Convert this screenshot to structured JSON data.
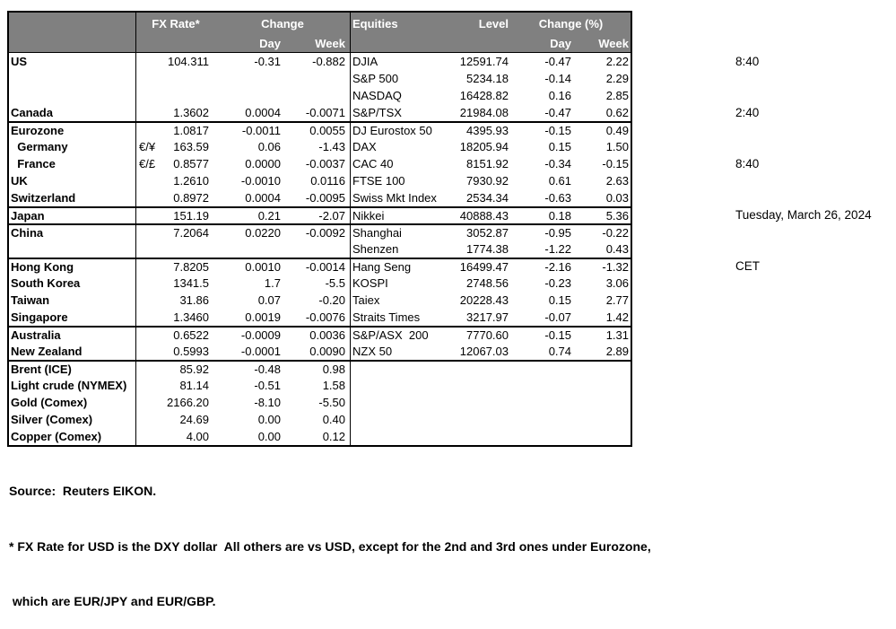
{
  "colors": {
    "header_bg": "#808080",
    "header_text": "#ffffff",
    "border": "#000000",
    "body_text": "#000000",
    "background": "#ffffff"
  },
  "side_panel": {
    "lines": [
      "8:40",
      "2:40",
      "8:40",
      "Tuesday, March 26, 2024",
      "CET"
    ]
  },
  "table": {
    "header": {
      "fx_rate": "FX Rate*",
      "change": "Change",
      "day": "Day",
      "week": "Week",
      "equities": "Equities",
      "level": "Level",
      "change_pct": "Change (%)",
      "eq_day": "Day",
      "eq_week": "Week"
    },
    "group_starts": [
      4,
      9,
      10,
      12,
      16,
      18
    ],
    "rows": [
      {
        "country": "US",
        "pair": "",
        "rate": "104.311",
        "day": "-0.31",
        "week": "-0.882",
        "eq": "DJIA",
        "level": "12591.74",
        "eday": "-0.47",
        "eweek": "2.22"
      },
      {
        "country": "",
        "pair": "",
        "rate": "",
        "day": "",
        "week": "",
        "eq": "S&P 500",
        "level": "5234.18",
        "eday": "-0.14",
        "eweek": "2.29"
      },
      {
        "country": "",
        "pair": "",
        "rate": "",
        "day": "",
        "week": "",
        "eq": "NASDAQ",
        "level": "16428.82",
        "eday": "0.16",
        "eweek": "2.85"
      },
      {
        "country": "Canada",
        "pair": "",
        "rate": "1.3602",
        "day": "0.0004",
        "week": "-0.0071",
        "eq": "S&P/TSX",
        "level": "21984.08",
        "eday": "-0.47",
        "eweek": "0.62"
      },
      {
        "country": "Eurozone",
        "pair": "",
        "rate": "1.0817",
        "day": "-0.0011",
        "week": "0.0055",
        "eq": "DJ Eurostox 50",
        "level": "4395.93",
        "eday": "-0.15",
        "eweek": "0.49"
      },
      {
        "country": "  Germany",
        "pair": "€/¥",
        "rate": "163.59",
        "day": "0.06",
        "week": "-1.43",
        "eq": "DAX",
        "level": "18205.94",
        "eday": "0.15",
        "eweek": "1.50"
      },
      {
        "country": "  France",
        "pair": "€/£",
        "rate": "0.8577",
        "day": "0.0000",
        "week": "-0.0037",
        "eq": "CAC 40",
        "level": "8151.92",
        "eday": "-0.34",
        "eweek": "-0.15"
      },
      {
        "country": "UK",
        "pair": "",
        "rate": "1.2610",
        "day": "-0.0010",
        "week": "0.0116",
        "eq": "FTSE 100",
        "level": "7930.92",
        "eday": "0.61",
        "eweek": "2.63"
      },
      {
        "country": "Switzerland",
        "pair": "",
        "rate": "0.8972",
        "day": "0.0004",
        "week": "-0.0095",
        "eq": "Swiss Mkt Index",
        "level": "2534.34",
        "eday": "-0.63",
        "eweek": "0.03"
      },
      {
        "country": "Japan",
        "pair": "",
        "rate": "151.19",
        "day": "0.21",
        "week": "-2.07",
        "eq": "Nikkei",
        "level": "40888.43",
        "eday": "0.18",
        "eweek": "5.36"
      },
      {
        "country": "China",
        "pair": "",
        "rate": "7.2064",
        "day": "0.0220",
        "week": "-0.0092",
        "eq": "Shanghai",
        "level": "3052.87",
        "eday": "-0.95",
        "eweek": "-0.22"
      },
      {
        "country": "",
        "pair": "",
        "rate": "",
        "day": "",
        "week": "",
        "eq": "Shenzen",
        "level": "1774.38",
        "eday": "-1.22",
        "eweek": "0.43"
      },
      {
        "country": "Hong Kong",
        "pair": "",
        "rate": "7.8205",
        "day": "0.0010",
        "week": "-0.0014",
        "eq": "Hang Seng",
        "level": "16499.47",
        "eday": "-2.16",
        "eweek": "-1.32"
      },
      {
        "country": "South Korea",
        "pair": "",
        "rate": "1341.5",
        "day": "1.7",
        "week": "-5.5",
        "eq": "KOSPI",
        "level": "2748.56",
        "eday": "-0.23",
        "eweek": "3.06"
      },
      {
        "country": "Taiwan",
        "pair": "",
        "rate": "31.86",
        "day": "0.07",
        "week": "-0.20",
        "eq": "Taiex",
        "level": "20228.43",
        "eday": "0.15",
        "eweek": "2.77"
      },
      {
        "country": "Singapore",
        "pair": "",
        "rate": "1.3460",
        "day": "0.0019",
        "week": "-0.0076",
        "eq": "Straits Times",
        "level": "3217.97",
        "eday": "-0.07",
        "eweek": "1.42"
      },
      {
        "country": "Australia",
        "pair": "",
        "rate": "0.6522",
        "day": "-0.0009",
        "week": "0.0036",
        "eq": "S&P/ASX  200",
        "level": "7770.60",
        "eday": "-0.15",
        "eweek": "1.31"
      },
      {
        "country": "New Zealand",
        "pair": "",
        "rate": "0.5993",
        "day": "-0.0001",
        "week": "0.0090",
        "eq": "NZX 50",
        "level": "12067.03",
        "eday": "0.74",
        "eweek": "2.89"
      },
      {
        "country": "Brent (ICE)",
        "pair": "",
        "rate": "85.92",
        "day": "-0.48",
        "week": "0.98",
        "eq": "",
        "level": "",
        "eday": "",
        "eweek": ""
      },
      {
        "country": "Light crude (NYMEX)",
        "pair": "",
        "rate": "81.14",
        "day": "-0.51",
        "week": "1.58",
        "eq": "",
        "level": "",
        "eday": "",
        "eweek": ""
      },
      {
        "country": "Gold (Comex)",
        "pair": "",
        "rate": "2166.20",
        "day": "-8.10",
        "week": "-5.50",
        "eq": "",
        "level": "",
        "eday": "",
        "eweek": ""
      },
      {
        "country": "Silver (Comex)",
        "pair": "",
        "rate": "24.69",
        "day": "0.00",
        "week": "0.40",
        "eq": "",
        "level": "",
        "eday": "",
        "eweek": ""
      },
      {
        "country": "Copper (Comex)",
        "pair": "",
        "rate": "4.00",
        "day": "0.00",
        "week": "0.12",
        "eq": "",
        "level": "",
        "eday": "",
        "eweek": ""
      }
    ]
  },
  "footer": {
    "source": "Source:  Reuters EIKON.",
    "note1": "* FX Rate for USD is the DXY dollar  All others are vs USD, except for the 2nd and 3rd ones under Eurozone,",
    "note2": " which are EUR/JPY and EUR/GBP."
  }
}
